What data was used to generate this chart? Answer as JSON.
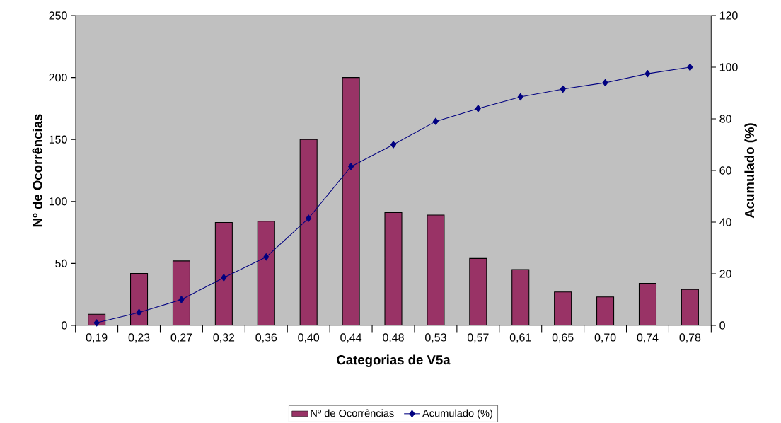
{
  "chart_data": {
    "type": "bar",
    "xlabel": "Categorias de V5a",
    "ylabel": "Nº de Ocorrências",
    "y2label": "Acumulado (%)",
    "categories": [
      "0,19",
      "0,23",
      "0,27",
      "0,32",
      "0,36",
      "0,40",
      "0,44",
      "0,48",
      "0,53",
      "0,57",
      "0,61",
      "0,65",
      "0,70",
      "0,74",
      "0,78"
    ],
    "series": [
      {
        "name": "Nº de Ocorrências",
        "color": "#993366",
        "values": [
          9,
          42,
          52,
          83,
          84,
          150,
          200,
          91,
          89,
          54,
          45,
          27,
          23,
          34,
          29
        ]
      },
      {
        "name": "Acumulado (%)",
        "type": "line",
        "axis": "y2",
        "color": "#000080",
        "marker": "diamond",
        "values": [
          1,
          5,
          10,
          18.5,
          26.5,
          41.5,
          61.5,
          70,
          79,
          84,
          88.5,
          91.5,
          94,
          97.5,
          100
        ]
      }
    ],
    "ylim": [
      0,
      250
    ],
    "yticks": [
      0,
      50,
      100,
      150,
      200,
      250
    ],
    "y2lim": [
      0,
      120
    ],
    "y2ticks": [
      0,
      20,
      40,
      60,
      80,
      100,
      120
    ],
    "grid": false,
    "legend": "bottom"
  }
}
